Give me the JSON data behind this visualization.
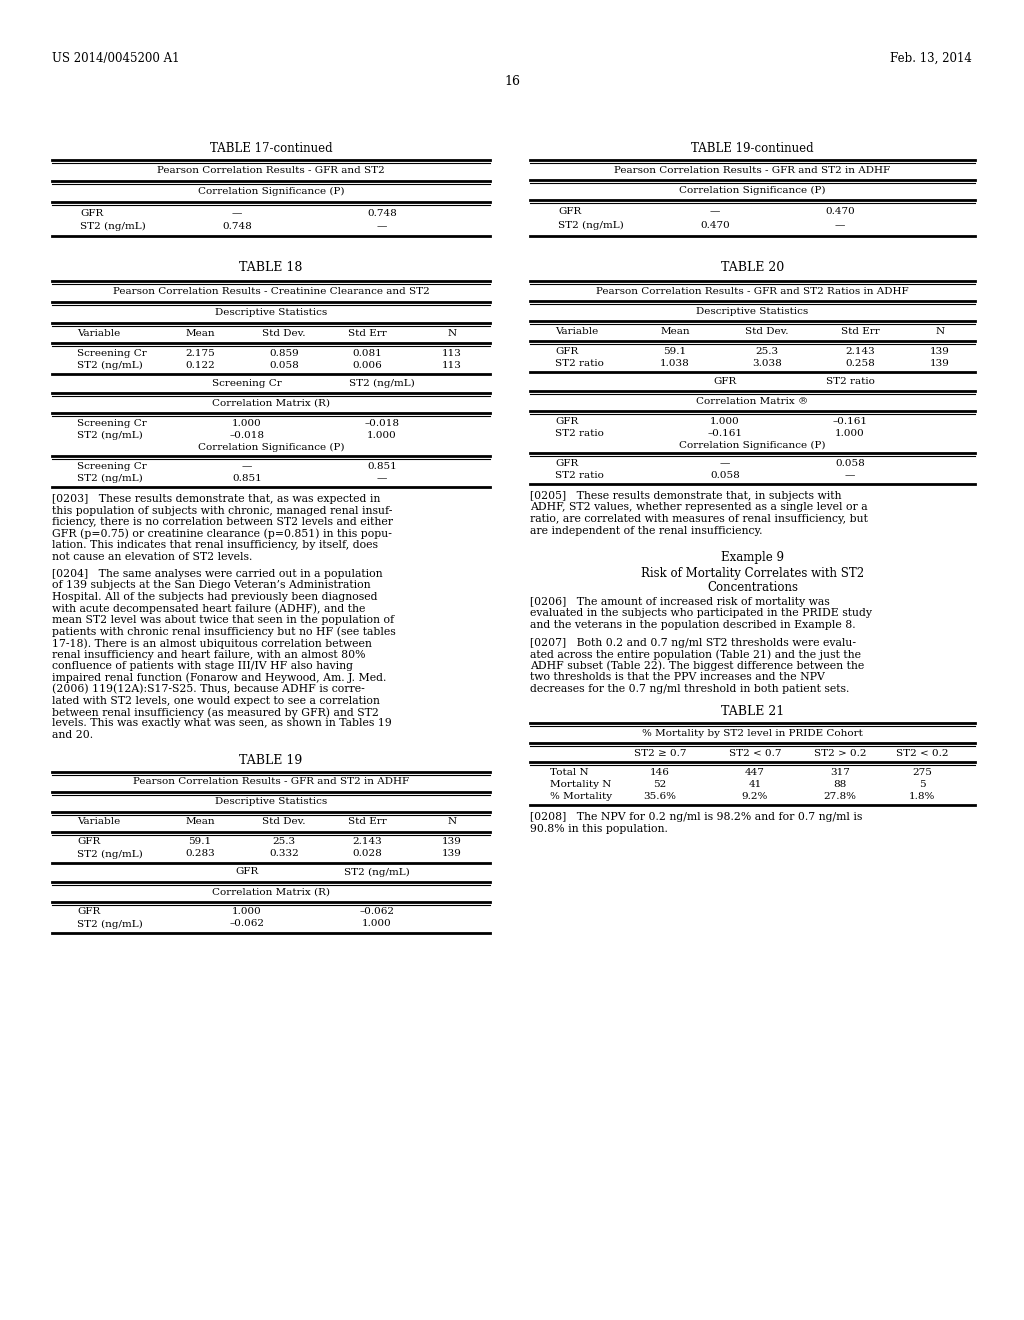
{
  "header_left": "US 2014/0045200 A1",
  "header_right": "Feb. 13, 2014",
  "page_number": "16",
  "table17_continued_title": "TABLE 17-continued",
  "table17_subtitle": "Pearson Correlation Results - GFR and ST2",
  "table17_col_header": "Correlation Significance (P)",
  "table17_rows": [
    [
      "GFR",
      "—",
      "0.748"
    ],
    [
      "ST2 (ng/mL)",
      "0.748",
      "—"
    ]
  ],
  "table18_title": "TABLE 18",
  "table18_subtitle": "Pearson Correlation Results - Creatinine Clearance and ST2",
  "table18_desc_header": "Descriptive Statistics",
  "table18_col_headers": [
    "Variable",
    "Mean",
    "Std Dev.",
    "Std Err",
    "N"
  ],
  "table18_desc_rows": [
    [
      "Screening Cr",
      "2.175",
      "0.859",
      "0.081",
      "113"
    ],
    [
      "ST2 (ng/mL)",
      "0.122",
      "0.058",
      "0.006",
      "113"
    ]
  ],
  "table18_corr_cols": [
    "Screening Cr",
    "ST2 (ng/mL)"
  ],
  "table18_corr_header": "Correlation Matrix (R)",
  "table18_corr_rows": [
    [
      "Screening Cr",
      "1.000",
      "–0.018"
    ],
    [
      "ST2 (ng/mL)",
      "–0.018",
      "1.000"
    ]
  ],
  "table18_sig_header": "Correlation Significance (P)",
  "table18_sig_rows": [
    [
      "Screening Cr",
      "—",
      "0.851"
    ],
    [
      "ST2 (ng/mL)",
      "0.851",
      "—"
    ]
  ],
  "table19_title": "TABLE 19",
  "table19_subtitle": "Pearson Correlation Results - GFR and ST2 in ADHF",
  "table19_desc_header": "Descriptive Statistics",
  "table19_col_headers": [
    "Variable",
    "Mean",
    "Std Dev.",
    "Std Err",
    "N"
  ],
  "table19_desc_rows": [
    [
      "GFR",
      "59.1",
      "25.3",
      "2.143",
      "139"
    ],
    [
      "ST2 (ng/mL)",
      "0.283",
      "0.332",
      "0.028",
      "139"
    ]
  ],
  "table19_corr_cols": [
    "GFR",
    "ST2 (ng/mL)"
  ],
  "table19_corr_header": "Correlation Matrix (R)",
  "table19_corr_rows": [
    [
      "GFR",
      "1.000",
      "–0.062"
    ],
    [
      "ST2 (ng/mL)",
      "–0.062",
      "1.000"
    ]
  ],
  "table19c_title": "TABLE 19-continued",
  "table19c_subtitle": "Pearson Correlation Results - GFR and ST2 in ADHF",
  "table19c_col_header": "Correlation Significance (P)",
  "table19c_rows": [
    [
      "GFR",
      "—",
      "0.470"
    ],
    [
      "ST2 (ng/mL)",
      "0.470",
      "—"
    ]
  ],
  "table20_title": "TABLE 20",
  "table20_subtitle": "Pearson Correlation Results - GFR and ST2 Ratios in ADHF",
  "table20_desc_header": "Descriptive Statistics",
  "table20_col_headers": [
    "Variable",
    "Mean",
    "Std Dev.",
    "Std Err",
    "N"
  ],
  "table20_desc_rows": [
    [
      "GFR",
      "59.1",
      "25.3",
      "2.143",
      "139"
    ],
    [
      "ST2 ratio",
      "1.038",
      "3.038",
      "0.258",
      "139"
    ]
  ],
  "table20_corr_cols": [
    "GFR",
    "ST2 ratio"
  ],
  "table20_corr_header": "Correlation Matrix ®",
  "table20_corr_rows": [
    [
      "GFR",
      "1.000",
      "–0.161"
    ],
    [
      "ST2 ratio",
      "–0.161",
      "1.000"
    ]
  ],
  "table20_sig_header": "Correlation Significance (P)",
  "table20_sig_rows": [
    [
      "GFR",
      "—",
      "0.058"
    ],
    [
      "ST2 ratio",
      "0.058",
      "—"
    ]
  ],
  "table21_title": "TABLE 21",
  "table21_subtitle": "% Mortality by ST2 level in PRIDE Cohort",
  "table21_col_headers": [
    "",
    "ST2 ≥ 0.7",
    "ST2 < 0.7",
    "ST2 > 0.2",
    "ST2 < 0.2"
  ],
  "table21_rows": [
    [
      "Total N",
      "146",
      "447",
      "317",
      "275"
    ],
    [
      "Mortality N",
      "52",
      "41",
      "88",
      "5"
    ],
    [
      "% Mortality",
      "35.6%",
      "9.2%",
      "27.8%",
      "1.8%"
    ]
  ],
  "p0203_lines": [
    "[0203]   These results demonstrate that, as was expected in",
    "this population of subjects with chronic, managed renal insuf-",
    "ficiency, there is no correlation between ST2 levels and either",
    "GFR (p=0.75) or creatinine clearance (p=0.851) in this popu-",
    "lation. This indicates that renal insufficiency, by itself, does",
    "not cause an elevation of ST2 levels."
  ],
  "p0204_lines": [
    "[0204]   The same analyses were carried out in a population",
    "of 139 subjects at the San Diego Veteran’s Administration",
    "Hospital. All of the subjects had previously been diagnosed",
    "with acute decompensated heart failure (ADHF), and the",
    "mean ST2 level was about twice that seen in the population of",
    "patients with chronic renal insufficiency but no HF (see tables",
    "17-18). There is an almost ubiquitous correlation between",
    "renal insufficiency and heart failure, with an almost 80%",
    "confluence of patients with stage III/IV HF also having",
    "impaired renal function (Fonarow and Heywood, Am. J. Med.",
    "(2006) 119(12A):S17-S25. Thus, because ADHF is corre-",
    "lated with ST2 levels, one would expect to see a correlation",
    "between renal insufficiency (as measured by GFR) and ST2",
    "levels. This was exactly what was seen, as shown in Tables 19",
    "and 20."
  ],
  "p0205_lines": [
    "[0205]   These results demonstrate that, in subjects with",
    "ADHF, ST2 values, whether represented as a single level or a",
    "ratio, are correlated with measures of renal insufficiency, but",
    "are independent of the renal insufficiency."
  ],
  "example9_title": "Example 9",
  "example9_line1": "Risk of Mortality Correlates with ST2",
  "example9_line2": "Concentrations",
  "p0206_lines": [
    "[0206]   The amount of increased risk of mortality was",
    "evaluated in the subjects who participated in the PRIDE study",
    "and the veterans in the population described in Example 8."
  ],
  "p0207_lines": [
    "[0207]   Both 0.2 and 0.7 ng/ml ST2 thresholds were evalu-",
    "ated across the entire population (Table 21) and the just the",
    "ADHF subset (Table 22). The biggest difference between the",
    "two thresholds is that the PPV increases and the NPV",
    "decreases for the 0.7 ng/ml threshold in both patient sets."
  ],
  "p0208_lines": [
    "[0208]   The NPV for 0.2 ng/ml is 98.2% and for 0.7 ng/ml is",
    "90.8% in this population."
  ]
}
